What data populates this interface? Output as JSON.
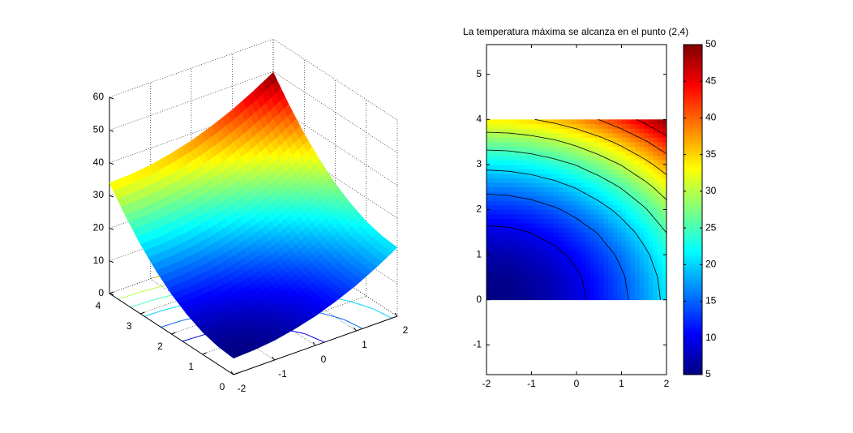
{
  "chart_data": [
    {
      "type": "surface3d",
      "colormap": "jet",
      "grid": true,
      "x": [
        -2,
        -1.5,
        -1,
        -0.5,
        0,
        0.5,
        1,
        1.5,
        2
      ],
      "y": [
        0,
        0.5,
        1,
        1.5,
        2,
        2.5,
        3,
        3.5,
        4
      ],
      "z": [
        [
          5,
          5.3,
          6,
          7.3,
          9,
          11.3,
          14,
          17.3,
          21
        ],
        [
          5.5,
          5.7,
          6.5,
          7.7,
          9.5,
          11.7,
          14.5,
          17.7,
          21.5
        ],
        [
          6.8,
          7.1,
          7.8,
          9.1,
          10.8,
          13.1,
          15.8,
          19.1,
          22.8
        ],
        [
          9.1,
          9.3,
          10.1,
          11.3,
          13.1,
          15.3,
          18.1,
          21.3,
          25.1
        ],
        [
          12.2,
          12.5,
          13.2,
          14.5,
          16.2,
          18.5,
          21.2,
          24.5,
          28.2
        ],
        [
          16.3,
          16.5,
          17.3,
          18.5,
          20.3,
          22.5,
          25.3,
          28.5,
          32.3
        ],
        [
          21.2,
          21.5,
          22.2,
          23.5,
          25.2,
          27.5,
          30.2,
          33.5,
          37.2
        ],
        [
          27.1,
          27.3,
          28.1,
          29.3,
          31.1,
          33.3,
          36.1,
          39.3,
          43.1
        ],
        [
          33.8,
          34.1,
          34.8,
          36.1,
          37.8,
          40.1,
          42.8,
          46.1,
          49.8
        ]
      ],
      "clim": [
        5,
        50
      ],
      "contour_levels": [
        10,
        15,
        20,
        25,
        30,
        35,
        40,
        45
      ],
      "xlim": [
        -2,
        2
      ],
      "ylim": [
        0,
        4
      ],
      "zlim": [
        0,
        60
      ],
      "xticks": [
        -2,
        -1,
        0,
        1,
        2
      ],
      "yticks": [
        0,
        1,
        2,
        3,
        4
      ],
      "zticks": [
        0,
        10,
        20,
        30,
        40,
        50,
        60
      ]
    },
    {
      "type": "heatmap",
      "colormap": "jet",
      "title": "La temperatura máxima se alcanza en el punto (2,4)",
      "x": [
        -2,
        -1.5,
        -1,
        -0.5,
        0,
        0.5,
        1,
        1.5,
        2
      ],
      "y": [
        0,
        0.5,
        1,
        1.5,
        2,
        2.5,
        3,
        3.5,
        4
      ],
      "z": [
        [
          5,
          5.3,
          6,
          7.3,
          9,
          11.3,
          14,
          17.3,
          21
        ],
        [
          5.5,
          5.7,
          6.5,
          7.7,
          9.5,
          11.7,
          14.5,
          17.7,
          21.5
        ],
        [
          6.8,
          7.1,
          7.8,
          9.1,
          10.8,
          13.1,
          15.8,
          19.1,
          22.8
        ],
        [
          9.1,
          9.3,
          10.1,
          11.3,
          13.1,
          15.3,
          18.1,
          21.3,
          25.1
        ],
        [
          12.2,
          12.5,
          13.2,
          14.5,
          16.2,
          18.5,
          21.2,
          24.5,
          28.2
        ],
        [
          16.3,
          16.5,
          17.3,
          18.5,
          20.3,
          22.5,
          25.3,
          28.5,
          32.3
        ],
        [
          21.2,
          21.5,
          22.2,
          23.5,
          25.2,
          27.5,
          30.2,
          33.5,
          37.2
        ],
        [
          27.1,
          27.3,
          28.1,
          29.3,
          31.1,
          33.3,
          36.1,
          39.3,
          43.1
        ],
        [
          33.8,
          34.1,
          34.8,
          36.1,
          37.8,
          40.1,
          42.8,
          46.1,
          49.8
        ]
      ],
      "contour_levels": [
        10,
        15,
        20,
        25,
        30,
        35,
        40,
        45
      ],
      "contour_color": "#000000",
      "xlim": [
        -2,
        2
      ],
      "ylim": [
        -1.66,
        5.66
      ],
      "xticks": [
        -2,
        -1,
        0,
        1,
        2
      ],
      "yticks": [
        -1,
        0,
        1,
        2,
        3,
        4,
        5
      ],
      "colorbar": {
        "clim": [
          5,
          50
        ],
        "ticks": [
          5,
          10,
          15,
          20,
          25,
          30,
          35,
          40,
          45,
          50
        ]
      }
    }
  ]
}
